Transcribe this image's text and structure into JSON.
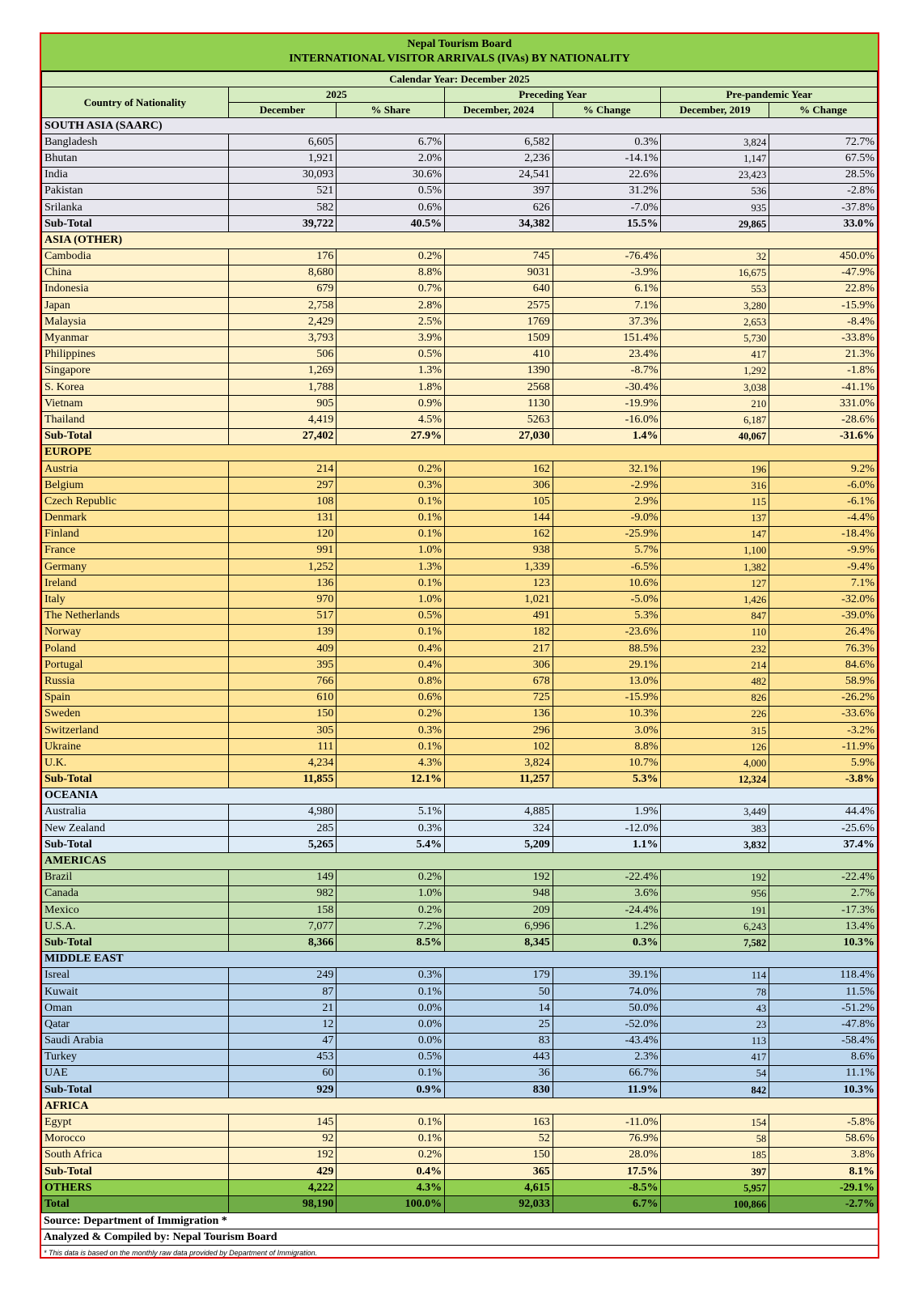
{
  "header": {
    "org": "Nepal Tourism Board",
    "title": "INTERNATIONAL VISITOR ARRIVALS (IVAs)  BY NATIONALITY",
    "calendar": "Calendar Year: December 2025",
    "country_col": "Country of Nationality",
    "group_2025": "2025",
    "group_preceding": "Preceding Year",
    "group_prepandemic": "Pre-pandemic Year",
    "col_december": "December",
    "col_share": "% Share",
    "col_dec2024": "December, 2024",
    "col_change1": "% Change",
    "col_dec2019": "December, 2019",
    "col_change2": "% Change"
  },
  "sections": [
    {
      "key": "saarc",
      "name": "SOUTH ASIA (SAARC)",
      "rows": [
        [
          "Bangladesh",
          "6,605",
          "6.7%",
          "6,582",
          "0.3%",
          "3,824",
          "72.7%"
        ],
        [
          "Bhutan",
          "1,921",
          "2.0%",
          "2,236",
          "-14.1%",
          "1,147",
          "67.5%"
        ],
        [
          "India",
          "30,093",
          "30.6%",
          "24,541",
          "22.6%",
          "23,423",
          "28.5%"
        ],
        [
          "Pakistan",
          "521",
          "0.5%",
          "397",
          "31.2%",
          "536",
          "-2.8%"
        ],
        [
          "Srilanka",
          "582",
          "0.6%",
          "626",
          "-7.0%",
          "935",
          "-37.8%"
        ]
      ],
      "subtotal": [
        "Sub-Total",
        "39,722",
        "40.5%",
        "34,382",
        "15.5%",
        "29,865",
        "33.0%"
      ]
    },
    {
      "key": "asia",
      "name": "ASIA (OTHER)",
      "rows": [
        [
          "Cambodia",
          "176",
          "0.2%",
          "745",
          "-76.4%",
          "32",
          "450.0%"
        ],
        [
          "China",
          "8,680",
          "8.8%",
          "9031",
          "-3.9%",
          "16,675",
          "-47.9%"
        ],
        [
          "Indonesia",
          "679",
          "0.7%",
          "640",
          "6.1%",
          "553",
          "22.8%"
        ],
        [
          "Japan",
          "2,758",
          "2.8%",
          "2575",
          "7.1%",
          "3,280",
          "-15.9%"
        ],
        [
          "Malaysia",
          "2,429",
          "2.5%",
          "1769",
          "37.3%",
          "2,653",
          "-8.4%"
        ],
        [
          "Myanmar",
          "3,793",
          "3.9%",
          "1509",
          "151.4%",
          "5,730",
          "-33.8%"
        ],
        [
          "Philippines",
          "506",
          "0.5%",
          "410",
          "23.4%",
          "417",
          "21.3%"
        ],
        [
          "Singapore",
          "1,269",
          "1.3%",
          "1390",
          "-8.7%",
          "1,292",
          "-1.8%"
        ],
        [
          "S. Korea",
          "1,788",
          "1.8%",
          "2568",
          "-30.4%",
          "3,038",
          "-41.1%"
        ],
        [
          "Vietnam",
          "905",
          "0.9%",
          "1130",
          "-19.9%",
          "210",
          "331.0%"
        ],
        [
          "Thailand",
          "4,419",
          "4.5%",
          "5263",
          "-16.0%",
          "6,187",
          "-28.6%"
        ]
      ],
      "subtotal": [
        "Sub-Total",
        "27,402",
        "27.9%",
        "27,030",
        "1.4%",
        "40,067",
        "-31.6%"
      ]
    },
    {
      "key": "eur",
      "name": "EUROPE",
      "rows": [
        [
          "Austria",
          "214",
          "0.2%",
          "162",
          "32.1%",
          "196",
          "9.2%"
        ],
        [
          "Belgium",
          "297",
          "0.3%",
          "306",
          "-2.9%",
          "316",
          "-6.0%"
        ],
        [
          "Czech Republic",
          "108",
          "0.1%",
          "105",
          "2.9%",
          "115",
          "-6.1%"
        ],
        [
          "Denmark",
          "131",
          "0.1%",
          "144",
          "-9.0%",
          "137",
          "-4.4%"
        ],
        [
          "Finland",
          "120",
          "0.1%",
          "162",
          "-25.9%",
          "147",
          "-18.4%"
        ],
        [
          "France",
          "991",
          "1.0%",
          "938",
          "5.7%",
          "1,100",
          "-9.9%"
        ],
        [
          "Germany",
          "1,252",
          "1.3%",
          "1,339",
          "-6.5%",
          "1,382",
          "-9.4%"
        ],
        [
          "Ireland",
          "136",
          "0.1%",
          "123",
          "10.6%",
          "127",
          "7.1%"
        ],
        [
          "Italy",
          "970",
          "1.0%",
          "1,021",
          "-5.0%",
          "1,426",
          "-32.0%"
        ],
        [
          "The Netherlands",
          "517",
          "0.5%",
          "491",
          "5.3%",
          "847",
          "-39.0%"
        ],
        [
          "Norway",
          "139",
          "0.1%",
          "182",
          "-23.6%",
          "110",
          "26.4%"
        ],
        [
          "Poland",
          "409",
          "0.4%",
          "217",
          "88.5%",
          "232",
          "76.3%"
        ],
        [
          "Portugal",
          "395",
          "0.4%",
          "306",
          "29.1%",
          "214",
          "84.6%"
        ],
        [
          "Russia",
          "766",
          "0.8%",
          "678",
          "13.0%",
          "482",
          "58.9%"
        ],
        [
          "Spain",
          "610",
          "0.6%",
          "725",
          "-15.9%",
          "826",
          "-26.2%"
        ],
        [
          "Sweden",
          "150",
          "0.2%",
          "136",
          "10.3%",
          "226",
          "-33.6%"
        ],
        [
          "Switzerland",
          "305",
          "0.3%",
          "296",
          "3.0%",
          "315",
          "-3.2%"
        ],
        [
          "Ukraine",
          "111",
          "0.1%",
          "102",
          "8.8%",
          "126",
          "-11.9%"
        ],
        [
          "U.K.",
          "4,234",
          "4.3%",
          "3,824",
          "10.7%",
          "4,000",
          "5.9%"
        ]
      ],
      "subtotal": [
        "Sub-Total",
        "11,855",
        "12.1%",
        "11,257",
        "5.3%",
        "12,324",
        "-3.8%"
      ]
    },
    {
      "key": "oce",
      "name": "OCEANIA",
      "rows": [
        [
          "Australia",
          "4,980",
          "5.1%",
          "4,885",
          "1.9%",
          "3,449",
          "44.4%"
        ],
        [
          "New Zealand",
          "285",
          "0.3%",
          "324",
          "-12.0%",
          "383",
          "-25.6%"
        ]
      ],
      "subtotal": [
        "Sub-Total",
        "5,265",
        "5.4%",
        "5,209",
        "1.1%",
        "3,832",
        "37.4%"
      ]
    },
    {
      "key": "ame",
      "name": "AMERICAS",
      "rows": [
        [
          "Brazil",
          "149",
          "0.2%",
          "192",
          "-22.4%",
          "192",
          "-22.4%"
        ],
        [
          "Canada",
          "982",
          "1.0%",
          "948",
          "3.6%",
          "956",
          "2.7%"
        ],
        [
          "Mexico",
          "158",
          "0.2%",
          "209",
          "-24.4%",
          "191",
          "-17.3%"
        ],
        [
          "U.S.A.",
          "7,077",
          "7.2%",
          "6,996",
          "1.2%",
          "6,243",
          "13.4%"
        ]
      ],
      "subtotal": [
        "Sub-Total",
        "8,366",
        "8.5%",
        "8,345",
        "0.3%",
        "7,582",
        "10.3%"
      ]
    },
    {
      "key": "me",
      "name": "MIDDLE EAST",
      "rows": [
        [
          "Isreal",
          "249",
          "0.3%",
          "179",
          "39.1%",
          "114",
          "118.4%"
        ],
        [
          "Kuwait",
          "87",
          "0.1%",
          "50",
          "74.0%",
          "78",
          "11.5%"
        ],
        [
          "Oman",
          "21",
          "0.0%",
          "14",
          "50.0%",
          "43",
          "-51.2%"
        ],
        [
          "Qatar",
          "12",
          "0.0%",
          "25",
          "-52.0%",
          "23",
          "-47.8%"
        ],
        [
          "Saudi Arabia",
          "47",
          "0.0%",
          "83",
          "-43.4%",
          "113",
          "-58.4%"
        ],
        [
          "Turkey",
          "453",
          "0.5%",
          "443",
          "2.3%",
          "417",
          "8.6%"
        ],
        [
          "UAE",
          "60",
          "0.1%",
          "36",
          "66.7%",
          "54",
          "11.1%"
        ]
      ],
      "subtotal": [
        "Sub-Total",
        "929",
        "0.9%",
        "830",
        "11.9%",
        "842",
        "10.3%"
      ]
    },
    {
      "key": "afr",
      "name": "AFRICA",
      "rows": [
        [
          "Egypt",
          "145",
          "0.1%",
          "163",
          "-11.0%",
          "154",
          "-5.8%"
        ],
        [
          "Morocco",
          "92",
          "0.1%",
          "52",
          "76.9%",
          "58",
          "58.6%"
        ],
        [
          "South Africa",
          "192",
          "0.2%",
          "150",
          "28.0%",
          "185",
          "3.8%"
        ]
      ],
      "subtotal": [
        "Sub-Total",
        "429",
        "0.4%",
        "365",
        "17.5%",
        "397",
        "8.1%"
      ]
    }
  ],
  "others": [
    "OTHERS",
    "4,222",
    "4.3%",
    "4,615",
    "-8.5%",
    "5,957",
    "-29.1%"
  ],
  "total": [
    "Total",
    "98,190",
    "100.0%",
    "92,033",
    "6.7%",
    "100,866",
    "-2.7%"
  ],
  "footer": {
    "source": "Source: Department of Immigration *",
    "compiled": "Analyzed & Compiled by: Nepal Tourism Board",
    "note": "* This data is based on the monthly raw data provided by Department of Immigration."
  },
  "colors": {
    "title_bg": "#92d050",
    "header_bg": "#d6ecc1",
    "border_frame": "#e00000",
    "saarc": "#e7e6ee",
    "asia": "#fff2cc",
    "europe": "#ffe599",
    "oceania": "#ddebf7",
    "americas": "#c6e0b4",
    "middle_east": "#bdd7ee",
    "africa": "#fff2cc",
    "others": "#92d050",
    "total": "#70ad47"
  }
}
